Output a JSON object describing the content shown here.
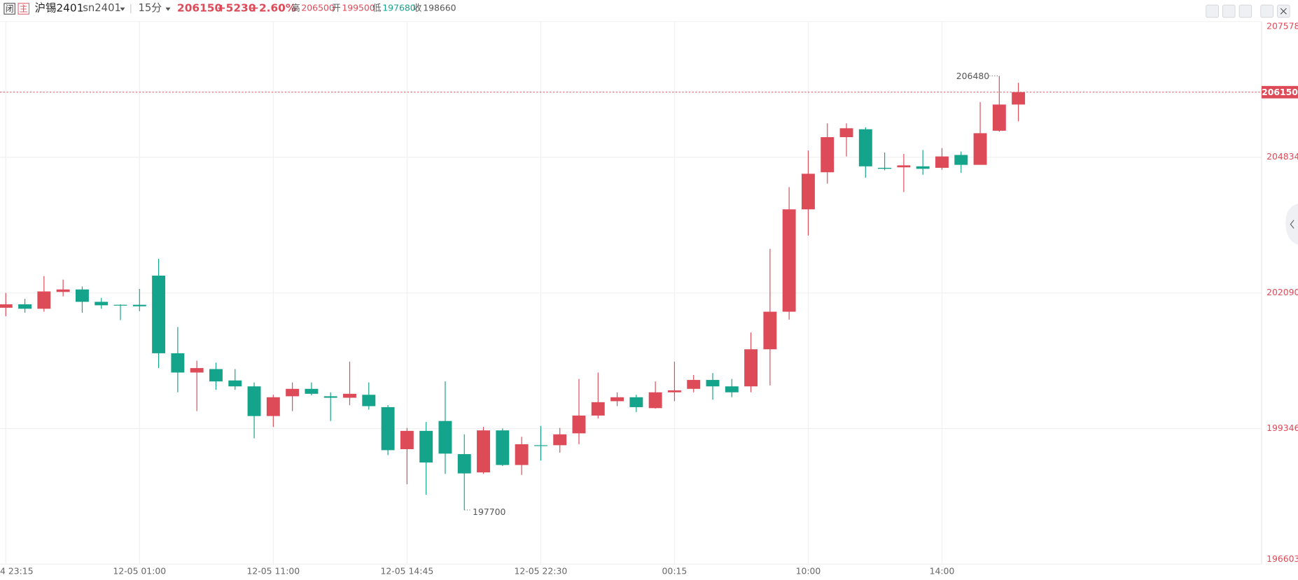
{
  "header": {
    "status": "闭",
    "main": "主",
    "name": "沪锡2401",
    "code": "sn2401",
    "period": "15分",
    "price": "206150",
    "change": "+5230",
    "change_pct": "+2.60%",
    "high_label": "高",
    "high": "206500",
    "open_label": "开",
    "open": "199500",
    "low_label": "低",
    "low": "197680",
    "close_label": "收",
    "close": "198660"
  },
  "chart_data": {
    "type": "candlestick",
    "categories": [
      "4 23:15",
      null,
      null,
      null,
      null,
      null,
      null,
      "12-05 01:00",
      null,
      null,
      null,
      null,
      null,
      null,
      "12-05 11:00",
      null,
      null,
      null,
      null,
      null,
      null,
      "12-05 14:45",
      null,
      null,
      null,
      null,
      null,
      null,
      "12-05 22:30",
      null,
      null,
      null,
      null,
      null,
      null,
      "00:15",
      null,
      null,
      null,
      null,
      null,
      null,
      "10:00",
      null,
      null,
      null,
      null,
      null,
      null,
      "14:00",
      null,
      null,
      null,
      null
    ],
    "open": [
      201790,
      201860,
      201770,
      202110,
      202160,
      201910,
      201850,
      201850,
      202440,
      200870,
      200480,
      200550,
      200320,
      200200,
      199600,
      200000,
      200150,
      200000,
      199970,
      200030,
      199780,
      198930,
      199300,
      199500,
      198830,
      198460,
      199310,
      198610,
      199010,
      199010,
      199250,
      199610,
      199900,
      199980,
      199760,
      200080,
      200150,
      200330,
      200200,
      200200,
      200950,
      201710,
      203780,
      204530,
      205240,
      205400,
      204620,
      204630,
      204650,
      204620,
      204880,
      204680,
      205370,
      205900
    ],
    "high": [
      202090,
      201970,
      202430,
      202360,
      202220,
      201990,
      201860,
      202170,
      202780,
      201400,
      200720,
      200680,
      200550,
      200280,
      200030,
      200280,
      200280,
      200080,
      200700,
      200280,
      199820,
      199360,
      199480,
      200300,
      199230,
      199380,
      199350,
      199180,
      199400,
      199360,
      200350,
      200480,
      200080,
      200030,
      200300,
      200700,
      200430,
      200470,
      200350,
      201290,
      202980,
      204230,
      204970,
      205520,
      205520,
      205440,
      204930,
      204900,
      204980,
      205020,
      204950,
      205950,
      206480,
      206340
    ],
    "low": [
      201620,
      201690,
      201710,
      202020,
      201690,
      201770,
      201540,
      201720,
      200570,
      200080,
      199700,
      200130,
      200130,
      199150,
      199380,
      199700,
      200020,
      199500,
      199820,
      199730,
      198810,
      198220,
      198010,
      198430,
      197700,
      198430,
      198590,
      198410,
      198700,
      198860,
      199030,
      199550,
      199800,
      199680,
      199750,
      199900,
      200080,
      199930,
      199980,
      200080,
      200220,
      201550,
      203250,
      204300,
      204850,
      204420,
      204570,
      204130,
      204480,
      204580,
      204520,
      204680,
      205350,
      205560
    ],
    "close": [
      201860,
      201770,
      202120,
      202160,
      201910,
      201840,
      201840,
      201820,
      200870,
      200480,
      200570,
      200300,
      200200,
      199600,
      199980,
      200150,
      200050,
      199970,
      200050,
      199800,
      198910,
      199300,
      198660,
      198840,
      198440,
      199310,
      198610,
      199030,
      199000,
      199230,
      199610,
      199880,
      199980,
      199780,
      200080,
      200120,
      200330,
      200200,
      200080,
      200950,
      201710,
      203780,
      204500,
      205240,
      205420,
      204650,
      204600,
      204670,
      204600,
      204850,
      204680,
      205320,
      205900,
      206150
    ],
    "up_color": "#dd4b59",
    "down_color": "#14a38b",
    "ylim": [
      196603,
      207578
    ],
    "yticks": [
      196603,
      199346,
      202090,
      204834,
      207578
    ],
    "high_mark": 206480,
    "low_mark": 197700,
    "last": 206150,
    "grid": true
  }
}
